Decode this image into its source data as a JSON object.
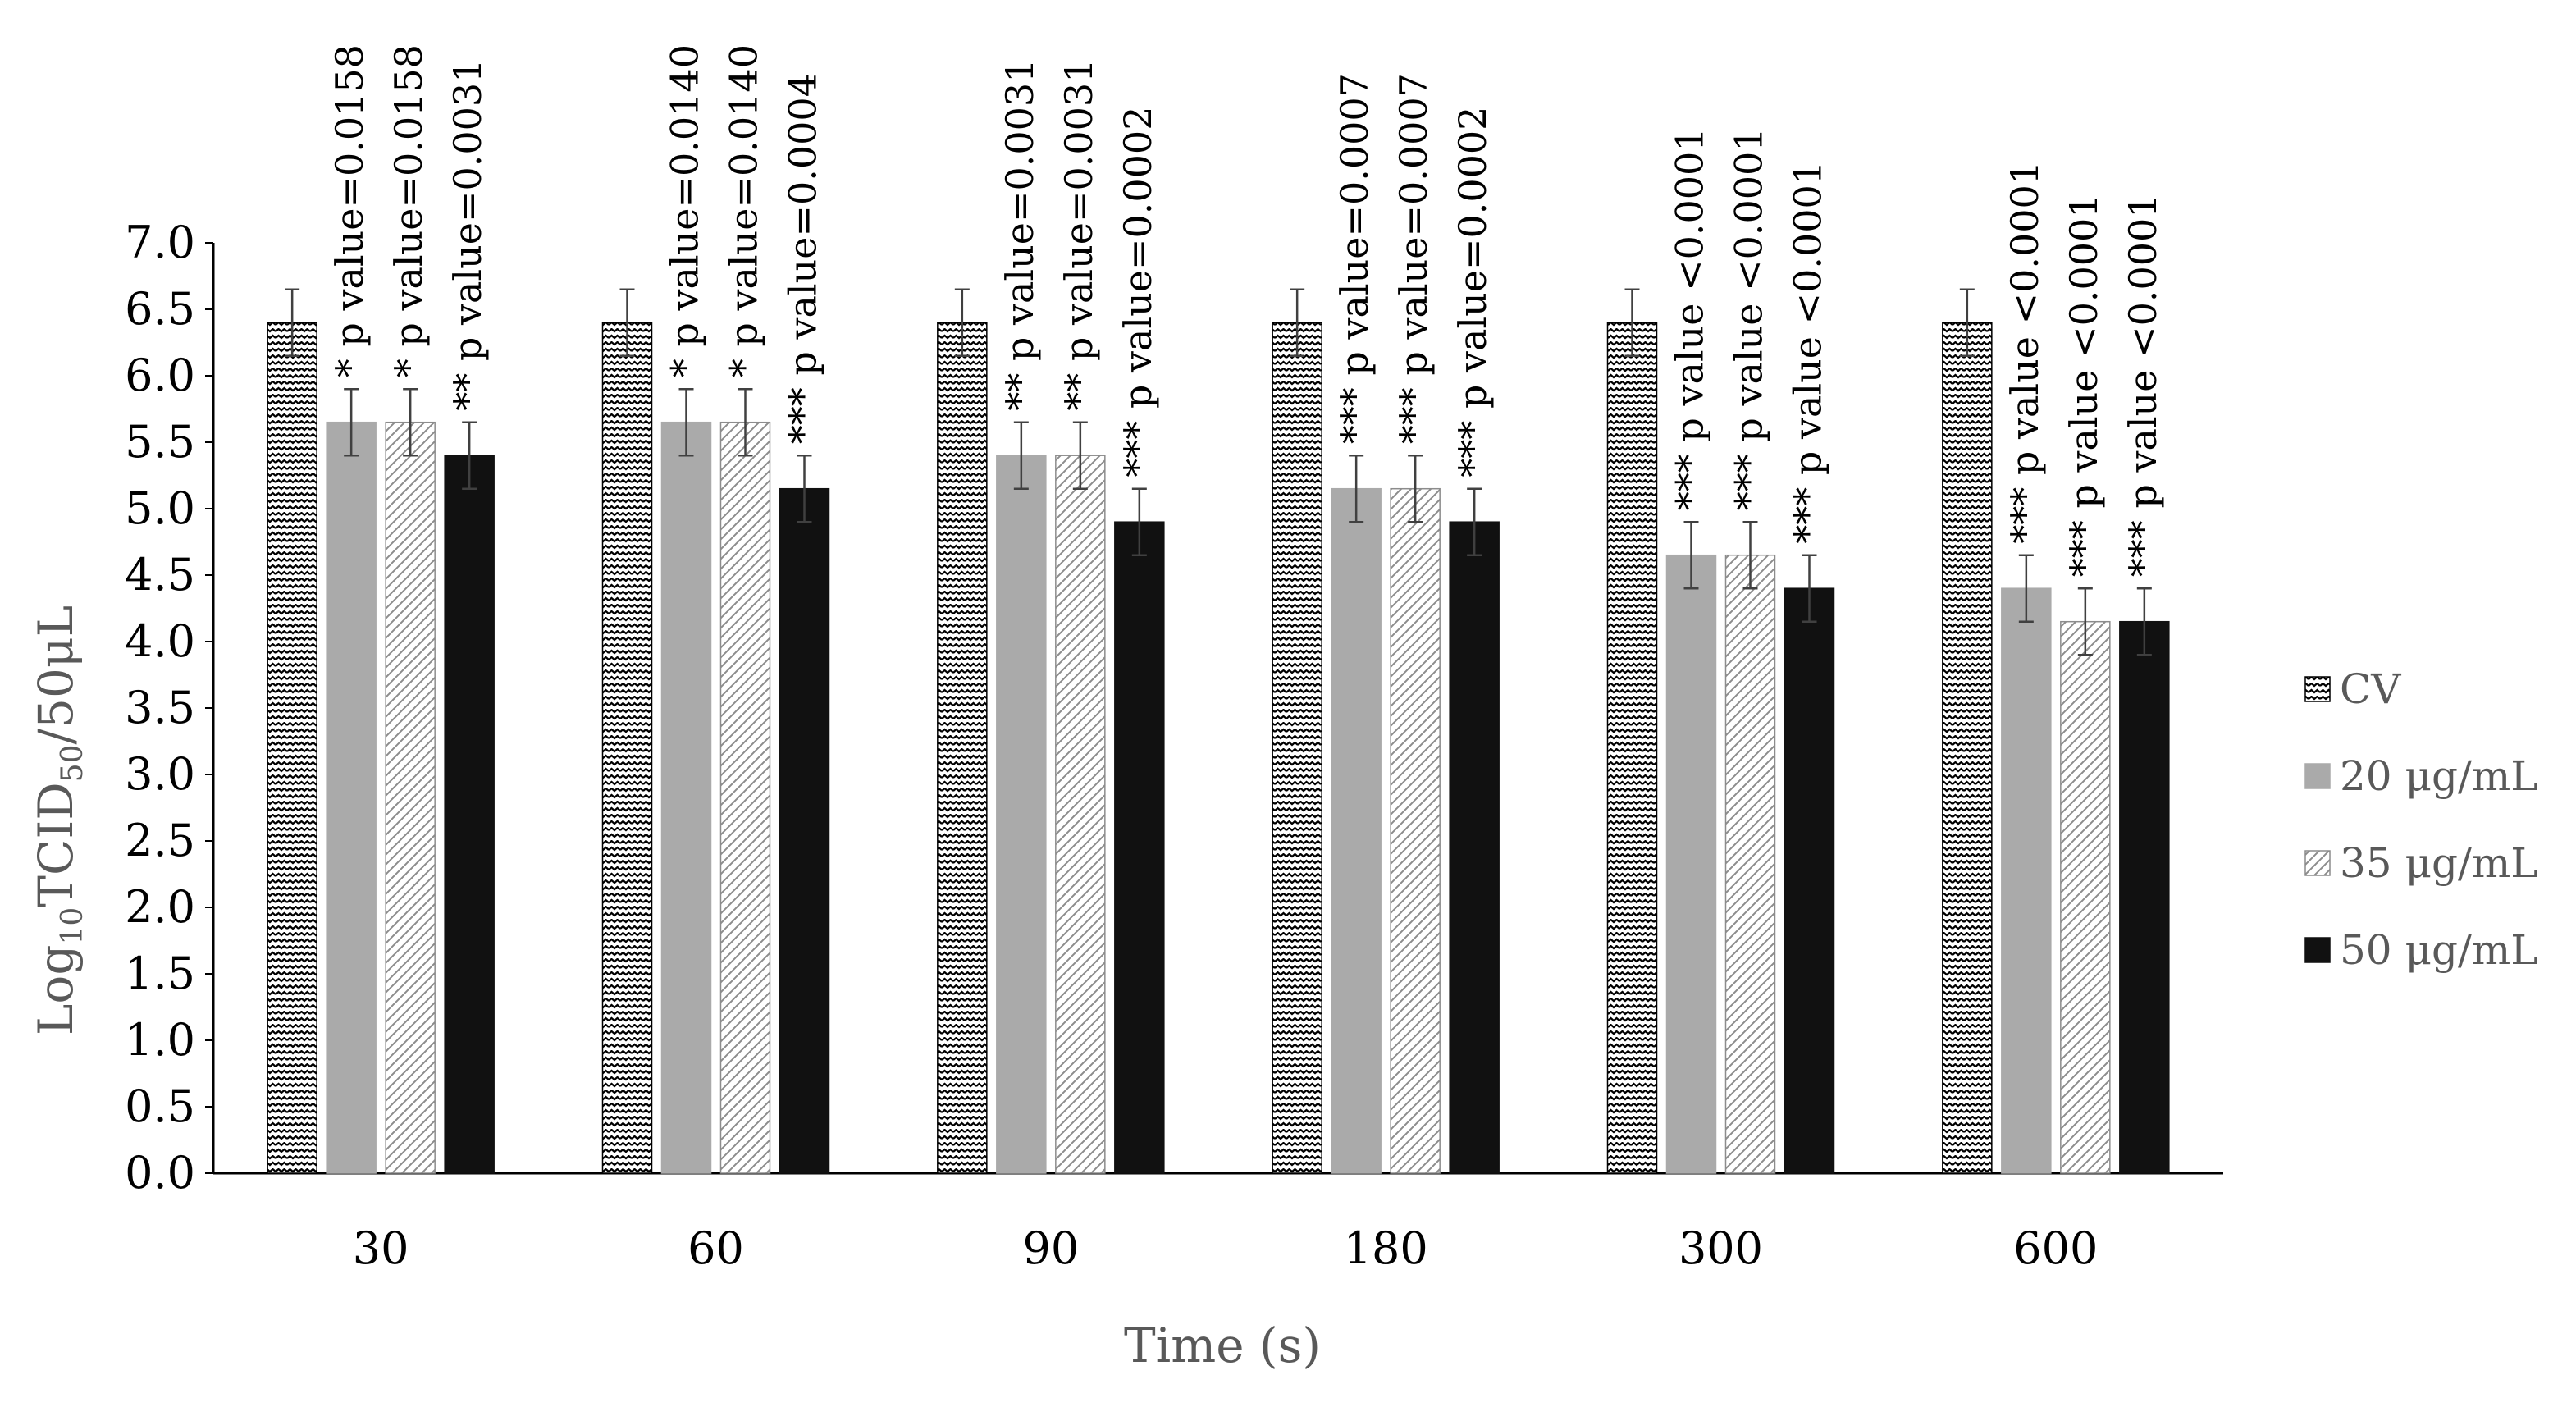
{
  "chart_data": {
    "type": "bar",
    "xlabel": "Time (s)",
    "ylabel": {
      "prefix": "Log",
      "sub1": "10",
      "mid": "TCID",
      "sub2": "50",
      "suffix": "/50μL"
    },
    "ylim": [
      0.0,
      7.0
    ],
    "ytick_step": 0.5,
    "yticks": [
      "0.0",
      "0.5",
      "1.0",
      "1.5",
      "2.0",
      "2.5",
      "3.0",
      "3.5",
      "4.0",
      "4.5",
      "5.0",
      "5.5",
      "6.0",
      "6.5",
      "7.0"
    ],
    "grid": false,
    "legend_position": "right",
    "categories": [
      "30",
      "60",
      "90",
      "180",
      "300",
      "600"
    ],
    "series": [
      {
        "name": "CV",
        "pattern": "zigzag",
        "values": [
          6.4,
          6.4,
          6.4,
          6.4,
          6.4,
          6.4
        ],
        "errors": [
          0.25,
          0.25,
          0.25,
          0.25,
          0.25,
          0.25
        ],
        "annotations": [
          "",
          "",
          "",
          "",
          "",
          ""
        ]
      },
      {
        "name": "20 μg/mL",
        "pattern": "solid-gray",
        "values": [
          5.65,
          5.65,
          5.4,
          5.15,
          4.65,
          4.4
        ],
        "errors": [
          0.25,
          0.25,
          0.25,
          0.25,
          0.25,
          0.25
        ],
        "annotations": [
          "* p value=0.0158",
          "* p value=0.0140",
          "** p value=0.0031",
          "*** p value=0.0007",
          "*** p value <0.0001",
          "*** p value <0.0001"
        ]
      },
      {
        "name": "35 μg/mL",
        "pattern": "diagonal",
        "values": [
          5.65,
          5.65,
          5.4,
          5.15,
          4.65,
          4.15
        ],
        "errors": [
          0.25,
          0.25,
          0.25,
          0.25,
          0.25,
          0.25
        ],
        "annotations": [
          "* p value=0.0158",
          "* p value=0.0140",
          "** p value=0.0031",
          "*** p value=0.0007",
          "*** p value <0.0001",
          "*** p value <0.0001"
        ]
      },
      {
        "name": "50 μg/mL",
        "pattern": "solid-black",
        "values": [
          5.4,
          5.15,
          4.9,
          4.9,
          4.4,
          4.15
        ],
        "errors": [
          0.25,
          0.25,
          0.25,
          0.25,
          0.25,
          0.25
        ],
        "annotations": [
          "** p value=0.0031",
          "*** p value=0.0004",
          "*** p value=0.0002",
          "*** p value=0.0002",
          "*** p value <0.0001",
          "*** p value <0.0001"
        ]
      }
    ]
  },
  "colors": {
    "axis": "#000000",
    "tick_text": "#000000",
    "axis_title": "#595959",
    "legend_text": "#595959",
    "cv_fill": "#ffffff",
    "cv_stroke": "#000000",
    "gray_fill": "#aaaaaa",
    "diag_fill": "#ffffff",
    "diag_stroke": "#8c8c8c",
    "black_fill": "#111111",
    "error_bar": "#404040",
    "annotation": "#000000"
  }
}
